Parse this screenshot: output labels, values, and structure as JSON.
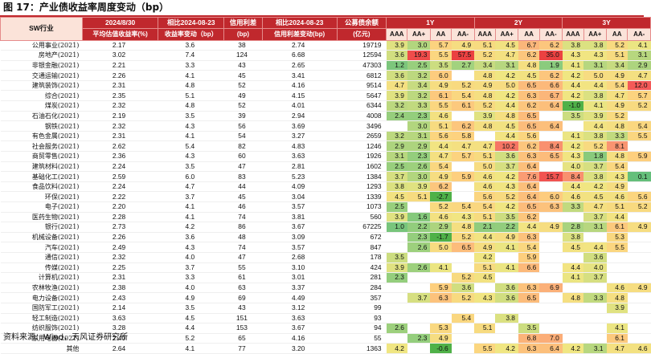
{
  "title": "图 17：产业债收益率周度变动（bp）",
  "source": "资料来源：Wind，天风证券研究所",
  "header": {
    "sw_label": "SW行业",
    "date_label": "2024/8/30",
    "date_sub": "平均估值收益率(%)",
    "chg_label": "相比2024-08-23",
    "chg_sub": "收益率变动（bp）",
    "spread_label": "信用利差",
    "spread_sub": "(bp)",
    "spread_chg_label": "相比2024-08-23",
    "spread_chg_sub": "信用利差变动(bp)",
    "bal_label": "公募债余额",
    "bal_sub": "(亿元)",
    "tenors": [
      "1Y",
      "2Y",
      "3Y"
    ],
    "grades": [
      "AAA",
      "AA+",
      "AA",
      "AA-"
    ]
  },
  "colors": {
    "header_bg": "#c0282d",
    "row_header_bg": "#fbe3d9"
  },
  "rows": [
    {
      "ind": "公用事业(2021)",
      "y": "2.17",
      "d": "3.6",
      "s": "38",
      "sd": "2.74",
      "b": "19719",
      "t": [
        "3.9",
        "3.0",
        "5.7",
        "4.9",
        "5.1",
        "4.5",
        "6.7",
        "6.2",
        "3.8",
        "3.8",
        "5.2",
        "4.1"
      ]
    },
    {
      "ind": "房地产(2021)",
      "y": "3.02",
      "d": "7.4",
      "s": "124",
      "sd": "6.68",
      "b": "12594",
      "t": [
        "3.6",
        "19.3",
        "5.5",
        "57.5",
        "5.2",
        "4.7",
        "6.2",
        "35.0",
        "4.3",
        "4.3",
        "5.1",
        "3.1"
      ]
    },
    {
      "ind": "非银金融(2021)",
      "y": "2.21",
      "d": "3.3",
      "s": "43",
      "sd": "2.65",
      "b": "47303",
      "t": [
        "1.2",
        "2.5",
        "3.5",
        "2.7",
        "3.4",
        "3.1",
        "4.8",
        "1.9",
        "4.1",
        "3.1",
        "3.4",
        "2.9"
      ]
    },
    {
      "ind": "交通运输(2021)",
      "y": "2.26",
      "d": "4.1",
      "s": "45",
      "sd": "3.41",
      "b": "6812",
      "t": [
        "3.6",
        "3.2",
        "6.0",
        "",
        "4.8",
        "4.2",
        "4.5",
        "6.2",
        "4.2",
        "5.0",
        "4.9",
        "4.7"
      ]
    },
    {
      "ind": "建筑装饰(2021)",
      "y": "2.31",
      "d": "4.8",
      "s": "52",
      "sd": "4.16",
      "b": "9514",
      "t": [
        "4.7",
        "3.4",
        "4.9",
        "5.2",
        "4.9",
        "5.0",
        "6.5",
        "6.6",
        "4.4",
        "4.4",
        "5.4",
        "12.0"
      ]
    },
    {
      "ind": "综合(2021)",
      "y": "2.35",
      "d": "5.1",
      "s": "49",
      "sd": "4.15",
      "b": "5647",
      "t": [
        "3.9",
        "3.2",
        "6.1",
        "5.4",
        "4.8",
        "4.2",
        "6.3",
        "6.7",
        "4.2",
        "3.8",
        "4.7",
        "5.7"
      ]
    },
    {
      "ind": "煤炭(2021)",
      "y": "2.32",
      "d": "4.8",
      "s": "52",
      "sd": "4.01",
      "b": "6344",
      "t": [
        "3.2",
        "3.3",
        "5.5",
        "6.1",
        "5.2",
        "4.4",
        "6.2",
        "6.4",
        "-1.0",
        "4.1",
        "4.9",
        "5.2"
      ]
    },
    {
      "ind": "石油石化(2021)",
      "y": "2.19",
      "d": "3.5",
      "s": "39",
      "sd": "2.94",
      "b": "4008",
      "t": [
        "2.4",
        "2.3",
        "4.6",
        "",
        "3.9",
        "4.8",
        "6.5",
        "",
        "3.5",
        "3.9",
        "5.2",
        ""
      ]
    },
    {
      "ind": "钢铁(2021)",
      "y": "2.32",
      "d": "4.3",
      "s": "56",
      "sd": "3.69",
      "b": "3496",
      "t": [
        "",
        "3.0",
        "5.1",
        "6.2",
        "4.8",
        "4.5",
        "6.5",
        "6.4",
        "",
        "4.4",
        "4.8",
        "5.4"
      ]
    },
    {
      "ind": "有色金属(2021)",
      "y": "2.31",
      "d": "4.1",
      "s": "54",
      "sd": "3.27",
      "b": "2659",
      "t": [
        "3.2",
        "3.1",
        "5.6",
        "5.8",
        "",
        "4.4",
        "5.6",
        "",
        "4.1",
        "3.8",
        "3.3",
        "5.5"
      ]
    },
    {
      "ind": "社会服务(2021)",
      "y": "2.62",
      "d": "5.4",
      "s": "82",
      "sd": "4.83",
      "b": "1246",
      "t": [
        "2.9",
        "2.9",
        "4.4",
        "4.7",
        "4.7",
        "10.2",
        "6.2",
        "8.4",
        "4.2",
        "5.2",
        "8.1",
        ""
      ]
    },
    {
      "ind": "商贸零售(2021)",
      "y": "2.36",
      "d": "4.3",
      "s": "60",
      "sd": "3.63",
      "b": "1926",
      "t": [
        "3.1",
        "2.3",
        "4.7",
        "5.7",
        "5.1",
        "3.6",
        "6.3",
        "6.5",
        "4.3",
        "1.8",
        "4.8",
        "5.9"
      ]
    },
    {
      "ind": "建筑材料(2021)",
      "y": "2.24",
      "d": "3.5",
      "s": "47",
      "sd": "2.81",
      "b": "1602",
      "t": [
        "2.5",
        "2.6",
        "5.4",
        "",
        "5.0",
        "3.7",
        "6.4",
        "",
        "4.0",
        "3.7",
        "5.4",
        ""
      ]
    },
    {
      "ind": "基础化工(2021)",
      "y": "2.59",
      "d": "6.0",
      "s": "83",
      "sd": "5.23",
      "b": "1384",
      "t": [
        "3.7",
        "3.0",
        "4.9",
        "5.9",
        "4.6",
        "4.2",
        "7.6",
        "15.7",
        "8.4",
        "3.8",
        "4.3",
        "0.1"
      ]
    },
    {
      "ind": "食品饮料(2021)",
      "y": "2.24",
      "d": "4.7",
      "s": "44",
      "sd": "4.09",
      "b": "1293",
      "t": [
        "3.8",
        "3.9",
        "6.2",
        "",
        "4.6",
        "4.3",
        "6.4",
        "",
        "4.4",
        "4.2",
        "4.9",
        ""
      ]
    },
    {
      "ind": "环保(2021)",
      "y": "2.22",
      "d": "3.7",
      "s": "45",
      "sd": "3.04",
      "b": "1339",
      "t": [
        "4.5",
        "5.1",
        "-2.7",
        "",
        "5.6",
        "5.2",
        "6.4",
        "6.0",
        "4.6",
        "4.5",
        "4.6",
        "5.6"
      ]
    },
    {
      "ind": "电子(2021)",
      "y": "2.20",
      "d": "4.1",
      "s": "46",
      "sd": "3.57",
      "b": "1073",
      "t": [
        "2.5",
        "",
        "5.2",
        "5.4",
        "5.4",
        "4.2",
        "6.5",
        "6.3",
        "3.3",
        "4.7",
        "5.1",
        "5.2"
      ]
    },
    {
      "ind": "医药生物(2021)",
      "y": "2.28",
      "d": "4.1",
      "s": "74",
      "sd": "3.81",
      "b": "560",
      "t": [
        "3.9",
        "1.6",
        "4.6",
        "4.3",
        "5.1",
        "3.5",
        "6.2",
        "",
        "",
        "3.7",
        "4.4",
        ""
      ]
    },
    {
      "ind": "银行(2021)",
      "y": "2.73",
      "d": "4.2",
      "s": "86",
      "sd": "3.67",
      "b": "67225",
      "t": [
        "1.0",
        "2.2",
        "2.9",
        "4.8",
        "2.1",
        "2.2",
        "4.4",
        "4.9",
        "2.8",
        "3.1",
        "6.1",
        "4.9"
      ]
    },
    {
      "ind": "机械设备(2021)",
      "y": "2.26",
      "d": "3.6",
      "s": "48",
      "sd": "3.09",
      "b": "672",
      "t": [
        "",
        "2.3",
        "-1.7",
        "5.2",
        "4.4",
        "4.9",
        "6.3",
        "",
        "3.8",
        "",
        "5.3",
        ""
      ]
    },
    {
      "ind": "汽车(2021)",
      "y": "2.49",
      "d": "4.3",
      "s": "74",
      "sd": "3.57",
      "b": "847",
      "t": [
        "",
        "2.6",
        "5.0",
        "6.5",
        "4.9",
        "4.1",
        "5.4",
        "",
        "4.5",
        "4.4",
        "5.5",
        ""
      ]
    },
    {
      "ind": "通信(2021)",
      "y": "2.32",
      "d": "4.0",
      "s": "47",
      "sd": "2.68",
      "b": "178",
      "t": [
        "3.5",
        "",
        "",
        "",
        "4.2",
        "",
        "5.9",
        "",
        "",
        "3.6",
        "",
        ""
      ]
    },
    {
      "ind": "传媒(2021)",
      "y": "2.25",
      "d": "3.7",
      "s": "55",
      "sd": "3.10",
      "b": "424",
      "t": [
        "3.9",
        "2.6",
        "4.1",
        "",
        "5.1",
        "4.1",
        "6.6",
        "",
        "4.4",
        "4.0",
        "",
        ""
      ]
    },
    {
      "ind": "计算机(2021)",
      "y": "2.31",
      "d": "3.3",
      "s": "61",
      "sd": "3.01",
      "b": "281",
      "t": [
        "2.3",
        "",
        "",
        "5.2",
        "4.5",
        "",
        "",
        "",
        "4.1",
        "3.7",
        "",
        ""
      ]
    },
    {
      "ind": "农林牧渔(2021)",
      "y": "2.38",
      "d": "4.0",
      "s": "63",
      "sd": "3.37",
      "b": "284",
      "t": [
        "",
        "",
        "5.9",
        "3.6",
        "",
        "3.6",
        "6.3",
        "6.9",
        "",
        "",
        "4.6",
        "4.9"
      ]
    },
    {
      "ind": "电力设备(2021)",
      "y": "2.43",
      "d": "4.9",
      "s": "69",
      "sd": "4.49",
      "b": "357",
      "t": [
        "",
        "3.7",
        "6.3",
        "5.2",
        "4.3",
        "3.6",
        "6.5",
        "",
        "4.8",
        "3.3",
        "4.8",
        ""
      ]
    },
    {
      "ind": "国防军工(2021)",
      "y": "2.14",
      "d": "3.5",
      "s": "43",
      "sd": "3.12",
      "b": "99",
      "t": [
        "",
        "",
        "",
        "",
        "",
        "",
        "",
        "",
        "",
        "",
        "3.9",
        ""
      ]
    },
    {
      "ind": "轻工制造(2021)",
      "y": "3.63",
      "d": "4.5",
      "s": "151",
      "sd": "3.63",
      "b": "93",
      "t": [
        "",
        "",
        "",
        "5.4",
        "",
        "3.8",
        "",
        "",
        "",
        "",
        "",
        ""
      ]
    },
    {
      "ind": "纺织服饰(2021)",
      "y": "3.28",
      "d": "4.4",
      "s": "153",
      "sd": "3.67",
      "b": "94",
      "t": [
        "2.6",
        "",
        "5.3",
        "",
        "5.1",
        "",
        "3.5",
        "",
        "",
        "",
        "4.1",
        ""
      ]
    },
    {
      "ind": "家用电器(2021)",
      "y": "2.40",
      "d": "5.2",
      "s": "65",
      "sd": "4.16",
      "b": "55",
      "t": [
        "",
        "2.3",
        "4.9",
        "",
        "",
        "",
        "6.8",
        "7.0",
        "",
        "",
        "6.1",
        ""
      ]
    },
    {
      "ind": "其他",
      "y": "2.64",
      "d": "4.1",
      "s": "77",
      "sd": "3.20",
      "b": "1363",
      "t": [
        "4.2",
        "",
        "-0.6",
        "",
        "5.5",
        "4.2",
        "6.3",
        "6.4",
        "4.2",
        "3.1",
        "4.7",
        "4.6"
      ]
    }
  ]
}
